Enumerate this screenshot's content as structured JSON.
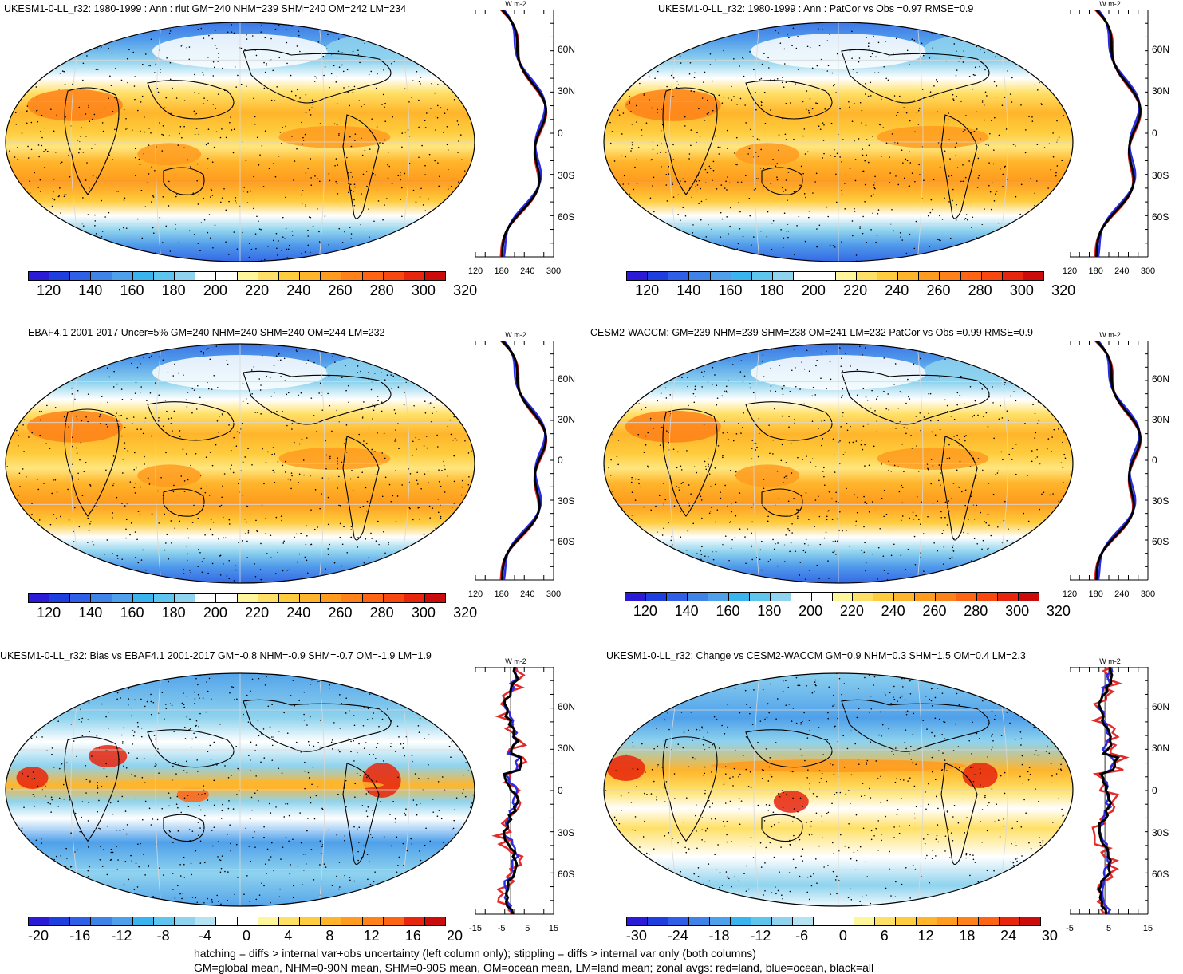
{
  "panels": [
    {
      "title": "UKESM1-0-LL_r32: 1980-1999 : Ann : rlut GM=240 NHM=239 SHM=240 OM=242 LM=234",
      "colorbar_ticks": [
        "120",
        "140",
        "160",
        "180",
        "200",
        "220",
        "240",
        "260",
        "280",
        "300",
        "320"
      ],
      "zonal_xticks": [
        "120",
        "180",
        "240",
        "300"
      ],
      "zonal_unit": "W m-2",
      "lat_labels": [
        "60N",
        "30N",
        "0",
        "30S",
        "60S"
      ]
    },
    {
      "title": "UKESM1-0-LL_r32: 1980-1999 : Ann : PatCor vs Obs =0.97 RMSE=0.9",
      "colorbar_ticks": [
        "120",
        "140",
        "160",
        "180",
        "200",
        "220",
        "240",
        "260",
        "280",
        "300",
        "320"
      ],
      "zonal_xticks": [
        "120",
        "180",
        "240",
        "300"
      ],
      "zonal_unit": "W m-2",
      "lat_labels": [
        "60N",
        "30N",
        "0",
        "30S",
        "60S"
      ]
    },
    {
      "title": "EBAF4.1 2001-2017 Uncer=5% GM=240 NHM=240 SHM=240 OM=244 LM=232",
      "colorbar_ticks": [
        "120",
        "140",
        "160",
        "180",
        "200",
        "220",
        "240",
        "260",
        "280",
        "300",
        "320"
      ],
      "zonal_xticks": [
        "120",
        "180",
        "240",
        "300"
      ],
      "zonal_unit": "W m-2",
      "lat_labels": [
        "60N",
        "30N",
        "0",
        "30S",
        "60S"
      ]
    },
    {
      "title": "CESM2-WACCM: GM=239 NHM=239 SHM=238 OM=241 LM=232 PatCor vs Obs =0.99 RMSE=0.9",
      "colorbar_ticks": [
        "120",
        "140",
        "160",
        "180",
        "200",
        "220",
        "240",
        "260",
        "280",
        "300",
        "320"
      ],
      "zonal_xticks": [
        "120",
        "180",
        "240",
        "300"
      ],
      "zonal_unit": "W m-2",
      "lat_labels": [
        "60N",
        "30N",
        "0",
        "30S",
        "60S"
      ]
    },
    {
      "title": "UKESM1-0-LL_r32: Bias vs EBAF4.1 2001-2017 GM=-0.8 NHM=-0.9 SHM=-0.7 OM=-1.9 LM=1.9",
      "colorbar_ticks": [
        "-20",
        "-16",
        "-12",
        "-8",
        "-4",
        "0",
        "4",
        "8",
        "12",
        "16",
        "20"
      ],
      "zonal_xticks": [
        "-15",
        "-5",
        "5",
        "15"
      ],
      "zonal_unit": "W m-2",
      "lat_labels": [
        "60N",
        "30N",
        "0",
        "30S",
        "60S"
      ]
    },
    {
      "title": "UKESM1-0-LL_r32: Change vs CESM2-WACCM GM=0.9 NHM=0.3 SHM=1.5 OM=0.4 LM=2.3",
      "colorbar_ticks": [
        "-30",
        "-24",
        "-18",
        "-12",
        "-6",
        "0",
        "6",
        "12",
        "18",
        "24",
        "30"
      ],
      "zonal_xticks": [
        "-5",
        "5",
        "15"
      ],
      "zonal_unit": "W m-2",
      "lat_labels": [
        "60N",
        "30N",
        "0",
        "30S",
        "60S"
      ]
    }
  ],
  "colors": {
    "seq": [
      "#2b1bd6",
      "#1e3ee0",
      "#2f5fe6",
      "#3f82e8",
      "#4fa0ea",
      "#39b4ee",
      "#5ec6ee",
      "#8fd3ee",
      "#ffffff",
      "#ffffff",
      "#fff59a",
      "#ffe066",
      "#ffcc3d",
      "#ffb52b",
      "#ff9b1e",
      "#ff8119",
      "#ff6414",
      "#f8480f",
      "#e8250d",
      "#cc0c0b"
    ],
    "land": "#e32b2b",
    "ocean": "#2b2be3",
    "all": "#000000"
  },
  "footer": {
    "line1": "hatching = diffs > internal var+obs uncertainty (left column only); stippling = diffs > internal var only (both columns)",
    "line2": "GM=global mean, NHM=0-90N mean, SHM=0-90S mean, OM=ocean mean, LM=land mean; zonal avgs: red=land, blue=ocean, black=all"
  }
}
